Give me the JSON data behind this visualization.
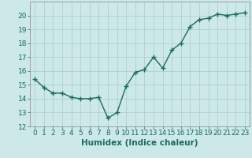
{
  "x": [
    0,
    1,
    2,
    3,
    4,
    5,
    6,
    7,
    8,
    9,
    10,
    11,
    12,
    13,
    14,
    15,
    16,
    17,
    18,
    19,
    20,
    21,
    22,
    23
  ],
  "y": [
    15.4,
    14.8,
    14.4,
    14.4,
    14.1,
    14.0,
    14.0,
    14.1,
    12.6,
    13.0,
    14.9,
    15.9,
    16.1,
    17.0,
    16.2,
    17.5,
    18.0,
    19.2,
    19.7,
    19.8,
    20.1,
    20.0,
    20.1,
    20.2
  ],
  "xlabel": "Humidex (Indice chaleur)",
  "ylim": [
    12,
    21
  ],
  "xlim_min": -0.5,
  "xlim_max": 23.5,
  "yticks": [
    12,
    13,
    14,
    15,
    16,
    17,
    18,
    19,
    20
  ],
  "xticks": [
    0,
    1,
    2,
    3,
    4,
    5,
    6,
    7,
    8,
    9,
    10,
    11,
    12,
    13,
    14,
    15,
    16,
    17,
    18,
    19,
    20,
    21,
    22,
    23
  ],
  "line_color": "#1a6b5e",
  "marker": "+",
  "marker_size": 4,
  "marker_linewidth": 1.0,
  "line_width": 1.0,
  "bg_color": "#cce8e8",
  "grid_color": "#aacccc",
  "tick_fontsize": 6.5,
  "xlabel_fontsize": 7.5,
  "xlabel_fontweight": "bold"
}
